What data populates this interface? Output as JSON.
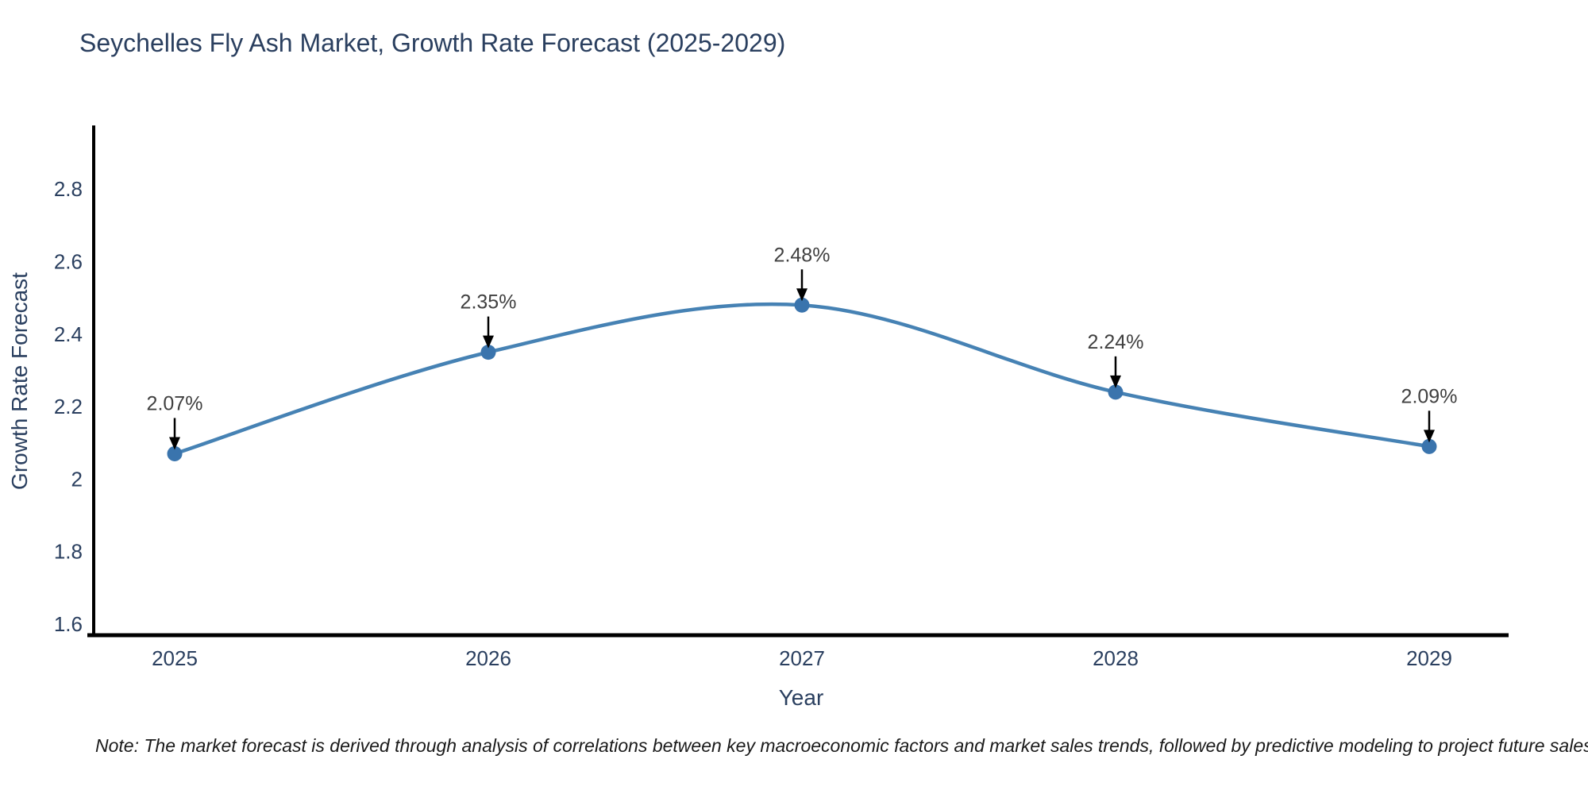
{
  "figure": {
    "background": "#ffffff"
  },
  "chart_data": {
    "type": "line",
    "title": "Seychelles Fly Ash Market, Growth Rate Forecast (2025-2029)",
    "xlabel": "Year",
    "ylabel": "Growth Rate Forecast",
    "x": [
      2025,
      2026,
      2027,
      2028,
      2029
    ],
    "series": [
      {
        "name": "Growth Rate Forecast",
        "values": [
          2.07,
          2.35,
          2.48,
          2.24,
          2.09
        ]
      }
    ],
    "point_labels": [
      "2.07%",
      "2.35%",
      "2.48%",
      "2.24%",
      "2.09%"
    ],
    "x_tick_labels": [
      "2025",
      "2026",
      "2027",
      "2028",
      "2029"
    ],
    "y_tick_values": [
      2.8,
      2.6,
      2.4,
      2.2,
      2.0,
      1.8,
      1.6
    ],
    "y_tick_labels": [
      "2.8",
      "2.6",
      "2.4",
      "2.2",
      "2",
      "1.8",
      "1.6"
    ],
    "ylim": [
      1.56,
      2.97
    ],
    "grid": false,
    "legend": "none",
    "line_shape": "spline",
    "colors": {
      "line": "#4682b4",
      "marker": "#3a74ad",
      "arrow": "#000000",
      "annotation_text": "#404040",
      "axis_text": "#2a3f5f",
      "spine": "#000000"
    }
  },
  "note": {
    "text": "Note: The market forecast is derived through analysis of correlations between key macroeconomic factors and market sales trends, followed by predictive modeling to project future sales"
  }
}
